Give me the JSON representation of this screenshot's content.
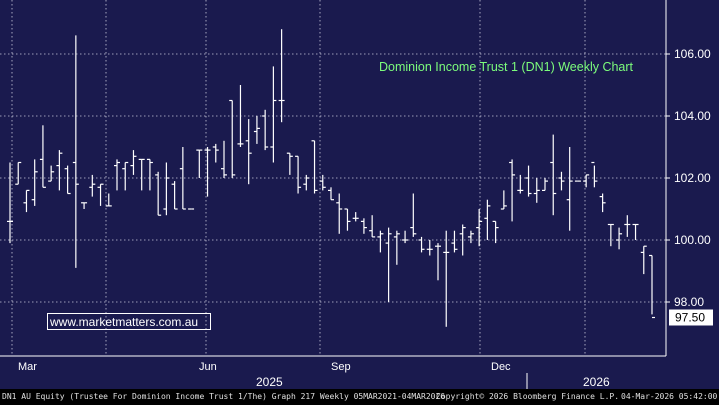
{
  "chart_data": {
    "type": "ohlc",
    "title": "Dominion Income Trust 1 (DN1) Weekly Chart",
    "x_ticks": [
      "Mar",
      "Jun",
      "Sep",
      "Dec"
    ],
    "year_labels": [
      "2025",
      "2026"
    ],
    "y_ticks": [
      "98.00",
      "100.00",
      "102.00",
      "104.00",
      "106.00"
    ],
    "ylim": [
      96.0,
      108.2
    ],
    "last_price": "97.50",
    "grid": true,
    "colors": {
      "background": "#1a1a4e",
      "bars": "#ffffff",
      "title": "#7CFC7C",
      "grid": "#c8c8dc"
    },
    "series": [
      [
        100.6,
        102.5,
        99.9,
        100.6
      ],
      [
        101.8,
        102.5,
        101.8,
        102.5
      ],
      [
        101.2,
        101.6,
        100.9,
        101.6
      ],
      [
        101.3,
        102.6,
        101.1,
        102.2
      ],
      [
        102.6,
        103.7,
        101.7,
        101.7
      ],
      [
        101.9,
        102.4,
        101.9,
        102.2
      ],
      [
        102.4,
        102.9,
        101.6,
        102.8
      ],
      [
        102.3,
        102.4,
        101.5,
        101.5
      ],
      [
        102.5,
        106.6,
        99.1,
        101.8
      ],
      [
        101.2,
        101.2,
        101.0,
        101.2
      ],
      [
        101.7,
        102.1,
        101.4,
        101.8
      ],
      [
        101.7,
        101.8,
        101.1,
        101.8
      ],
      [
        101.1,
        101.5,
        101.1,
        101.1
      ],
      [
        102.4,
        102.6,
        101.6,
        102.5
      ],
      [
        102.3,
        102.5,
        101.6,
        102.5
      ],
      [
        102.4,
        102.9,
        102.1,
        102.7
      ],
      [
        102.6,
        102.6,
        101.6,
        102.6
      ],
      [
        102.6,
        102.6,
        101.6,
        102.5
      ],
      [
        102.1,
        102.2,
        100.8,
        100.8
      ],
      [
        101.0,
        102.5,
        100.8,
        102.0
      ],
      [
        101.8,
        101.9,
        101.0,
        101.0
      ],
      [
        102.3,
        103.0,
        101.0,
        101.0
      ],
      [
        101.0,
        101.0,
        101.0,
        101.0
      ],
      [
        102.9,
        102.9,
        102.0,
        102.9
      ],
      [
        102.9,
        103.0,
        101.4,
        102.9
      ],
      [
        103.0,
        103.1,
        102.5,
        102.9
      ],
      [
        102.3,
        103.2,
        102.0,
        102.1
      ],
      [
        104.5,
        104.5,
        102.0,
        102.1
      ],
      [
        103.1,
        105.0,
        103.0,
        103.1
      ],
      [
        103.2,
        103.9,
        101.8,
        102.8
      ],
      [
        103.5,
        104.0,
        103.1,
        103.6
      ],
      [
        104.0,
        104.2,
        102.9,
        103.0
      ],
      [
        103.0,
        105.6,
        102.5,
        104.5
      ],
      [
        104.5,
        106.8,
        103.8,
        104.5
      ],
      [
        102.8,
        102.8,
        102.1,
        102.7
      ],
      [
        102.7,
        102.7,
        101.5,
        101.7
      ],
      [
        101.8,
        102.1,
        101.6,
        102.0
      ],
      [
        103.2,
        103.2,
        101.5,
        101.6
      ],
      [
        101.9,
        102.1,
        101.6,
        101.7
      ],
      [
        101.6,
        101.7,
        101.3,
        101.3
      ],
      [
        101.2,
        101.5,
        100.2,
        101.0
      ],
      [
        101.0,
        101.0,
        100.3,
        100.6
      ],
      [
        100.7,
        100.9,
        100.6,
        100.7
      ],
      [
        100.6,
        100.7,
        100.2,
        100.4
      ],
      [
        100.3,
        100.8,
        100.1,
        100.1
      ],
      [
        100.1,
        100.3,
        99.6,
        100.2
      ],
      [
        99.9,
        100.4,
        98.0,
        100.2
      ],
      [
        100.1,
        100.3,
        99.2,
        100.2
      ],
      [
        100.0,
        100.3,
        99.9,
        100.0
      ],
      [
        100.4,
        101.5,
        100.1,
        100.2
      ],
      [
        100.0,
        100.1,
        99.6,
        99.7
      ],
      [
        99.7,
        100.0,
        99.5,
        99.7
      ],
      [
        99.8,
        99.9,
        98.7,
        99.8
      ],
      [
        99.6,
        100.3,
        97.2,
        99.6
      ],
      [
        99.9,
        100.3,
        99.6,
        99.7
      ],
      [
        100.2,
        100.5,
        99.5,
        100.4
      ],
      [
        100.1,
        100.3,
        99.9,
        100.2
      ],
      [
        100.4,
        101.0,
        99.8,
        100.6
      ],
      [
        100.7,
        101.3,
        100.0,
        101.1
      ],
      [
        100.6,
        100.6,
        99.9,
        100.4
      ],
      [
        101.0,
        101.6,
        101.0,
        101.1
      ],
      [
        102.5,
        102.6,
        100.6,
        102.1
      ],
      [
        101.6,
        102.1,
        101.5,
        101.6
      ],
      [
        102.0,
        102.4,
        101.4,
        101.5
      ],
      [
        101.5,
        102.0,
        101.2,
        101.6
      ],
      [
        101.6,
        102.0,
        101.6,
        101.9
      ],
      [
        102.5,
        103.4,
        100.8,
        101.5
      ],
      [
        102.0,
        102.2,
        101.6,
        101.9
      ],
      [
        101.3,
        103.0,
        100.3,
        101.9
      ],
      [
        101.9,
        101.9,
        101.9,
        101.9
      ],
      [
        101.9,
        102.1,
        101.7,
        102.1
      ],
      [
        102.5,
        102.4,
        101.7,
        101.9
      ],
      [
        101.4,
        101.5,
        100.9,
        101.2
      ],
      [
        100.5,
        100.5,
        99.8,
        100.5
      ],
      [
        100.0,
        100.4,
        99.7,
        100.2
      ],
      [
        100.5,
        100.8,
        100.1,
        100.5
      ],
      [
        100.5,
        100.5,
        100.0,
        100.5
      ],
      [
        99.6,
        99.8,
        98.9,
        99.8
      ],
      [
        99.5,
        99.5,
        97.6,
        97.5
      ]
    ]
  },
  "watermark": "www.marketmatters.com.au",
  "footer": {
    "left": "DN1 AU Equity (Trustee For Dominion Income Trust 1/The) Graph 217 Weekly 05MAR2021-04MAR2026",
    "middle": "Copyright© 2026 Bloomberg Finance L.P.",
    "right": "04-Mar-2026 05:42:00"
  }
}
